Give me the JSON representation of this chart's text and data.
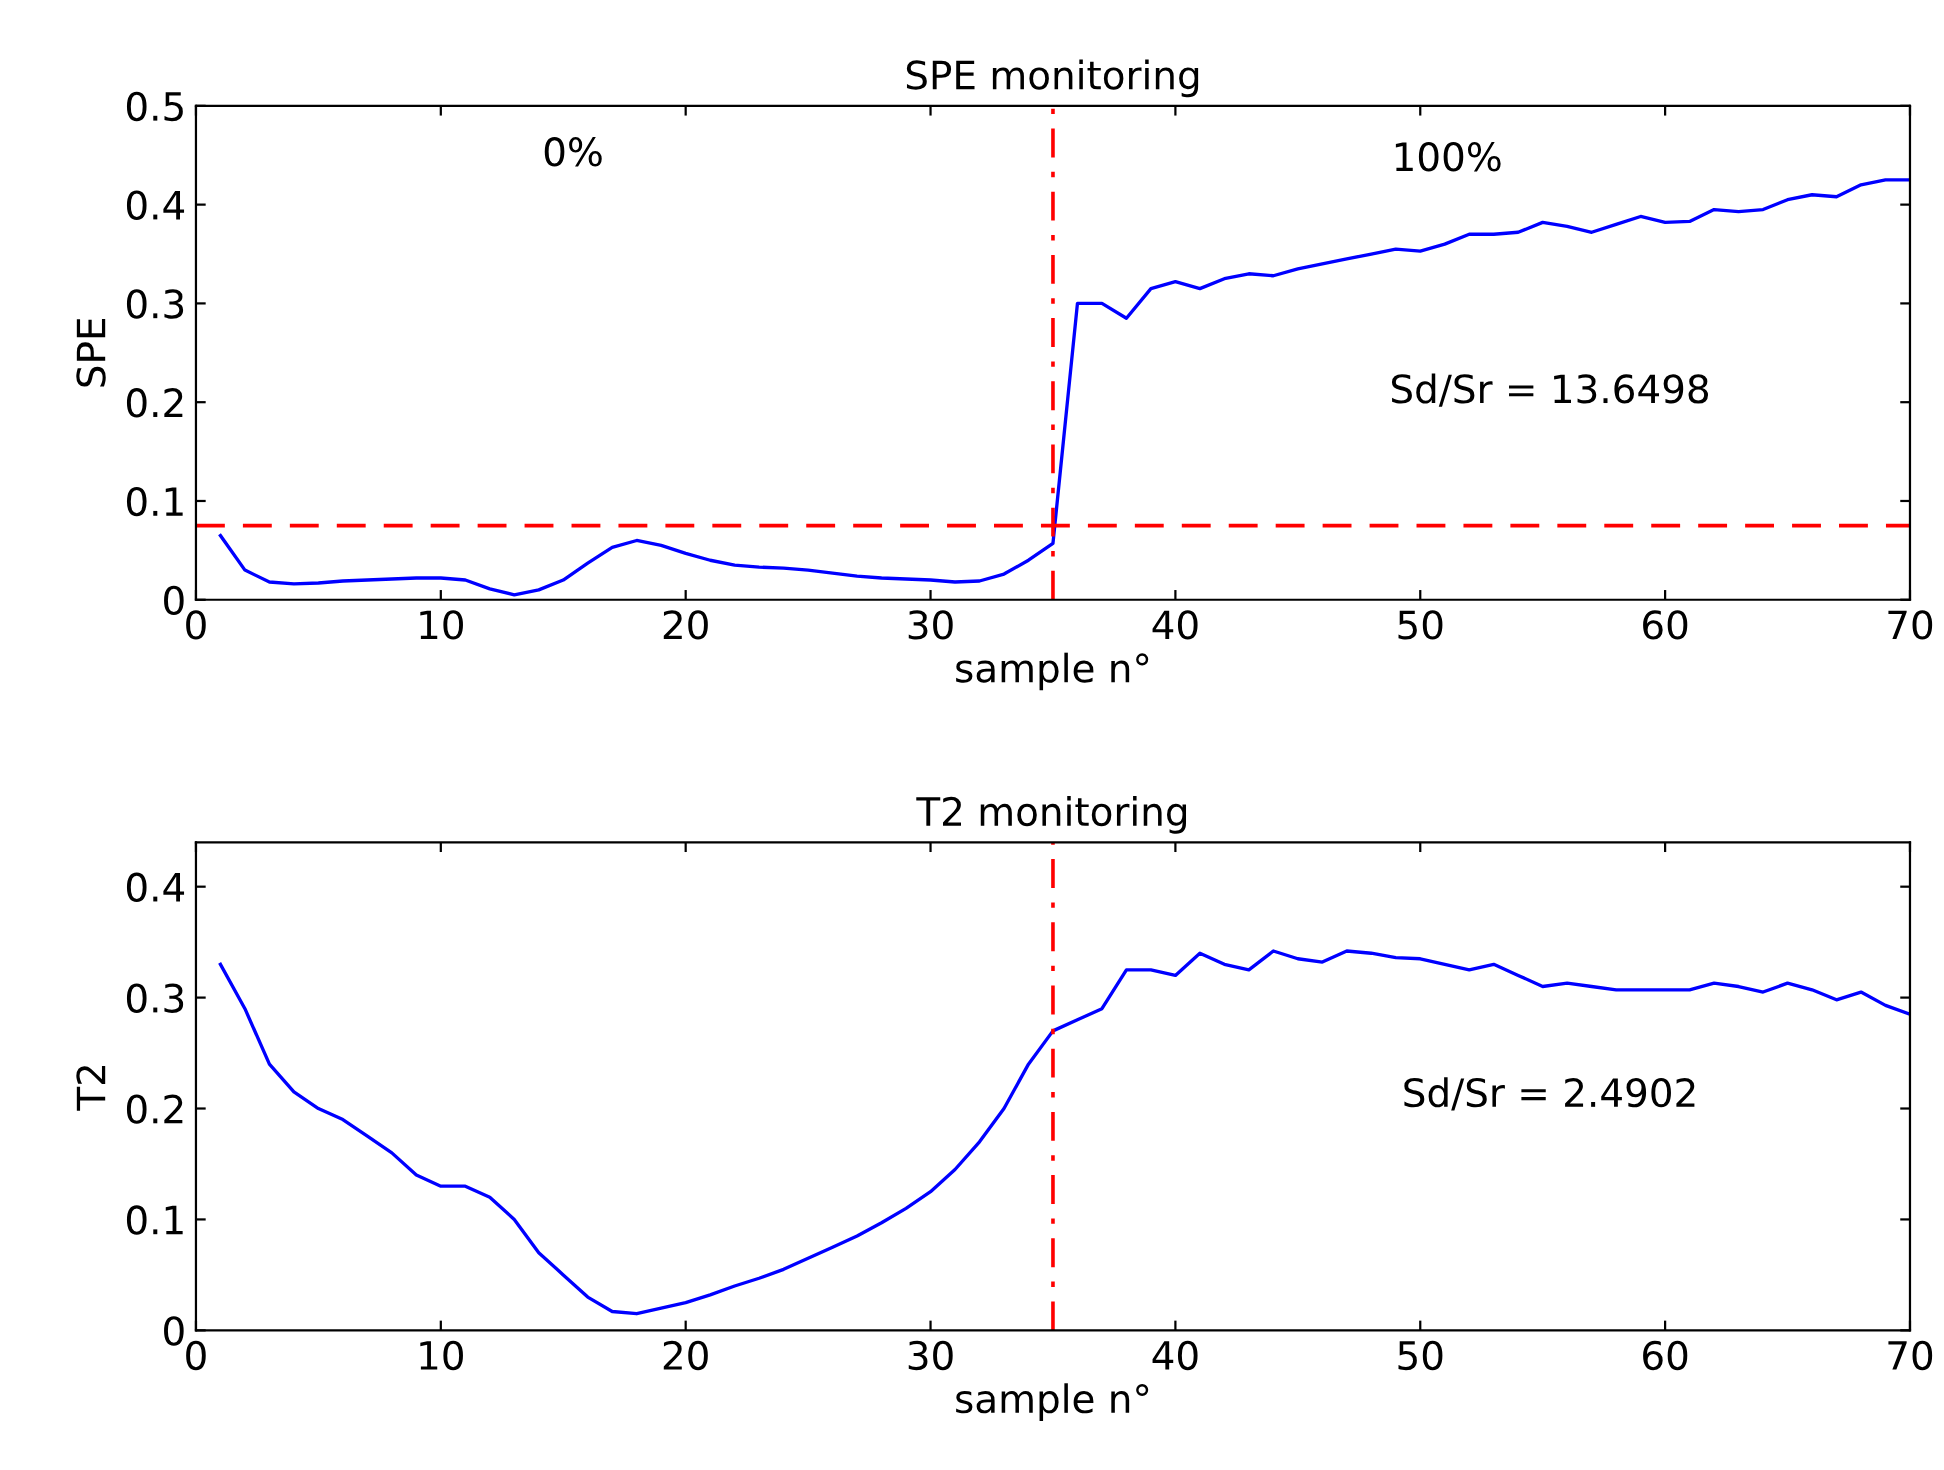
{
  "chart_data": [
    {
      "type": "line",
      "title": "SPE monitoring",
      "xlabel": "sample n°",
      "ylabel": "SPE",
      "xlim": [
        0,
        70
      ],
      "xticks": [
        0,
        10,
        20,
        30,
        40,
        50,
        60,
        70
      ],
      "ylim": [
        0,
        0.5
      ],
      "yticks": [
        0,
        0.1,
        0.2,
        0.3,
        0.4,
        0.5
      ],
      "grid": false,
      "legend": false,
      "marker": "none",
      "x": [
        1,
        2,
        3,
        4,
        5,
        6,
        7,
        8,
        9,
        10,
        11,
        12,
        13,
        14,
        15,
        16,
        17,
        18,
        19,
        20,
        21,
        22,
        23,
        24,
        25,
        26,
        27,
        28,
        29,
        30,
        31,
        32,
        33,
        34,
        35,
        36,
        37,
        38,
        39,
        40,
        41,
        42,
        43,
        44,
        45,
        46,
        47,
        48,
        49,
        50,
        51,
        52,
        53,
        54,
        55,
        56,
        57,
        58,
        59,
        60,
        61,
        62,
        63,
        64,
        65,
        66,
        67,
        68,
        69,
        70
      ],
      "series": [
        {
          "color": "#0000ff",
          "line_style": "solid",
          "values": [
            0.065,
            0.03,
            0.018,
            0.016,
            0.017,
            0.019,
            0.02,
            0.021,
            0.022,
            0.022,
            0.02,
            0.011,
            0.005,
            0.01,
            0.02,
            0.037,
            0.053,
            0.06,
            0.055,
            0.047,
            0.04,
            0.035,
            0.033,
            0.032,
            0.03,
            0.027,
            0.024,
            0.022,
            0.021,
            0.02,
            0.018,
            0.019,
            0.026,
            0.04,
            0.057,
            0.3,
            0.3,
            0.285,
            0.315,
            0.322,
            0.315,
            0.325,
            0.33,
            0.328,
            0.335,
            0.34,
            0.345,
            0.35,
            0.355,
            0.353,
            0.36,
            0.37,
            0.37,
            0.372,
            0.382,
            0.378,
            0.372,
            0.38,
            0.388,
            0.382,
            0.383,
            0.395,
            0.393,
            0.395,
            0.405,
            0.41,
            0.408,
            0.42,
            0.425,
            0.425
          ]
        }
      ],
      "ref_lines": [
        {
          "axis": "y",
          "value": 0.075,
          "color": "#ff0000",
          "line_style": "dashed"
        },
        {
          "axis": "x",
          "value": 35,
          "color": "#ff0000",
          "line_style": "dashdot"
        }
      ],
      "annotations": [
        "0%",
        "100%",
        "Sd/Sr = 13.6498"
      ]
    },
    {
      "type": "line",
      "title": "T2 monitoring",
      "xlabel": "sample n°",
      "ylabel": "T2",
      "xlim": [
        0,
        70
      ],
      "xticks": [
        0,
        10,
        20,
        30,
        40,
        50,
        60,
        70
      ],
      "ylim": [
        0,
        0.44
      ],
      "yticks": [
        0,
        0.1,
        0.2,
        0.3,
        0.4
      ],
      "grid": false,
      "legend": false,
      "marker": "none",
      "x": [
        1,
        2,
        3,
        4,
        5,
        6,
        7,
        8,
        9,
        10,
        11,
        12,
        13,
        14,
        15,
        16,
        17,
        18,
        19,
        20,
        21,
        22,
        23,
        24,
        25,
        26,
        27,
        28,
        29,
        30,
        31,
        32,
        33,
        34,
        35,
        36,
        37,
        38,
        39,
        40,
        41,
        42,
        43,
        44,
        45,
        46,
        47,
        48,
        49,
        50,
        51,
        52,
        53,
        54,
        55,
        56,
        57,
        58,
        59,
        60,
        61,
        62,
        63,
        64,
        65,
        66,
        67,
        68,
        69,
        70
      ],
      "series": [
        {
          "color": "#0000ff",
          "line_style": "solid",
          "values": [
            0.33,
            0.29,
            0.24,
            0.215,
            0.2,
            0.19,
            0.175,
            0.16,
            0.14,
            0.13,
            0.13,
            0.12,
            0.1,
            0.07,
            0.05,
            0.03,
            0.017,
            0.015,
            0.02,
            0.025,
            0.032,
            0.04,
            0.047,
            0.055,
            0.065,
            0.075,
            0.085,
            0.097,
            0.11,
            0.125,
            0.145,
            0.17,
            0.2,
            0.24,
            0.27,
            0.28,
            0.29,
            0.325,
            0.325,
            0.32,
            0.34,
            0.33,
            0.325,
            0.342,
            0.335,
            0.332,
            0.342,
            0.34,
            0.336,
            0.335,
            0.33,
            0.325,
            0.33,
            0.32,
            0.31,
            0.313,
            0.31,
            0.307,
            0.307,
            0.307,
            0.307,
            0.313,
            0.31,
            0.305,
            0.313,
            0.307,
            0.298,
            0.305,
            0.293,
            0.285
          ]
        }
      ],
      "ref_lines": [
        {
          "axis": "x",
          "value": 35,
          "color": "#ff0000",
          "line_style": "dashdot"
        }
      ],
      "annotations": [
        "Sd/Sr = 2.4902"
      ]
    }
  ]
}
